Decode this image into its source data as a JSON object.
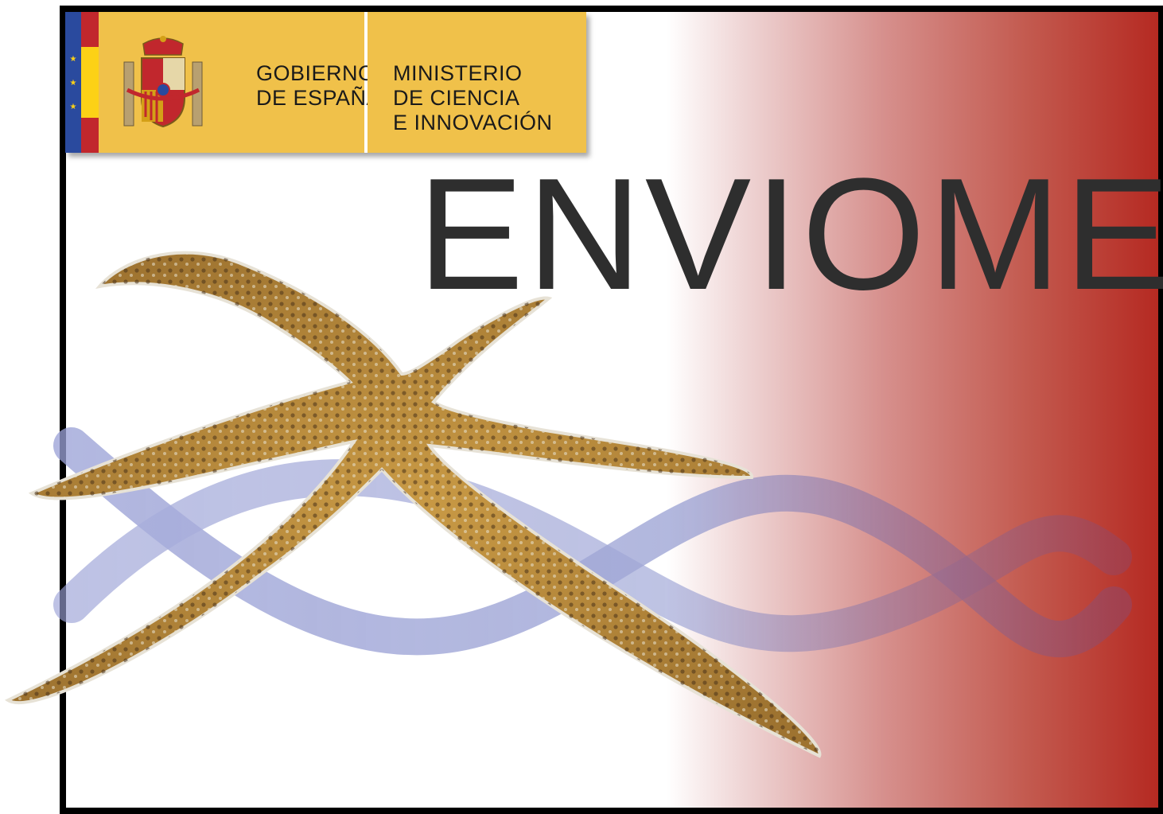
{
  "government": {
    "line1": "GOBIERNO",
    "line2": "DE ESPAÑA"
  },
  "ministry": {
    "line1": "MINISTERIO",
    "line2": "DE CIENCIA",
    "line3": "E INNOVACIÓN"
  },
  "title": "ENVIOME",
  "colors": {
    "logo_yellow": "#f0c14a",
    "flag_red": "#c1272d",
    "flag_yellow": "#fcd116",
    "eu_blue": "#2a4a9e",
    "title_gray": "#2e2e2e",
    "gradient_red": "#b52a22",
    "starfish_gold": "#b8893a",
    "dna_blue": "#8f97cf"
  },
  "icons": [
    "coat-of-arms-icon",
    "eu-stars-icon"
  ]
}
